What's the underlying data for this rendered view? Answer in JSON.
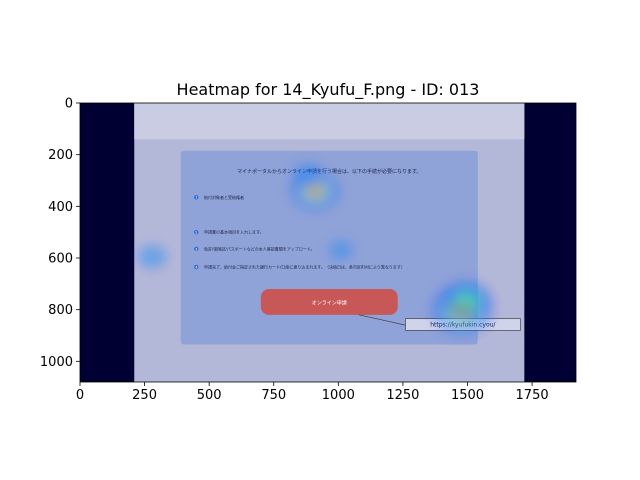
{
  "chart_data": {
    "type": "heatmap",
    "title": "Heatmap for 14_Kyufu_F.png - ID: 013",
    "xlabel": "",
    "ylabel": "",
    "xlim": [
      0,
      1920
    ],
    "ylim": [
      1080,
      0
    ],
    "x_ticks": [
      0,
      250,
      500,
      750,
      1000,
      1250,
      1500,
      1750
    ],
    "y_ticks": [
      0,
      200,
      400,
      600,
      800,
      1000
    ],
    "background_image": {
      "x_range": [
        210,
        1720
      ],
      "y_range": [
        0,
        1080
      ],
      "header_text": "マイナポータルからオンライン申請を行う場合は、以下の手続が必要になります。",
      "steps": [
        {
          "num": "1",
          "text": "給付対象者と受給権者"
        },
        {
          "num": "2",
          "text": "申請書の基本項目を入力します。"
        },
        {
          "num": "3",
          "text": "免許/保険証/パスポートなどの本人確認書類をアップロード。"
        },
        {
          "num": "4",
          "text": "申請完了、給付金ご指定された銀行カード/口座に振り込まれます。（決給日は、各市区町村により異なります）"
        }
      ],
      "button_label": "オンライン申請",
      "link_text": "https://kyufukin.cyou/"
    },
    "hotspots": [
      {
        "x": 910,
        "y": 340,
        "intensity": 1.0,
        "spread": 75
      },
      {
        "x": 1480,
        "y": 800,
        "intensity": 1.0,
        "spread": 95
      },
      {
        "x": 280,
        "y": 595,
        "intensity": 0.45,
        "spread": 45
      },
      {
        "x": 1010,
        "y": 570,
        "intensity": 0.35,
        "spread": 35
      },
      {
        "x": 1500,
        "y": 760,
        "intensity": 0.5,
        "spread": 70
      },
      {
        "x": 880,
        "y": 280,
        "intensity": 0.4,
        "spread": 45
      }
    ],
    "colormap": "jet",
    "overlay_opacity": 0.55
  }
}
